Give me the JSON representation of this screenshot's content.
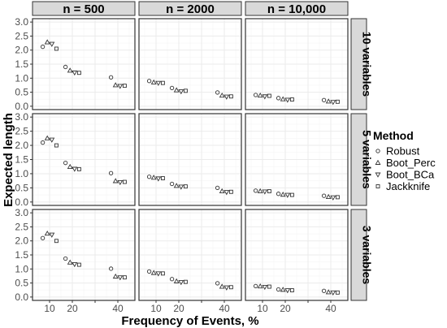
{
  "chart_data": {
    "type": "scatter",
    "xlabel": "Frequency of Events, %",
    "ylabel": "Expected length",
    "column_facets": [
      "n = 500",
      "n = 2000",
      "n = 10,000"
    ],
    "row_facets": [
      "10 variables",
      "5 variables",
      "3 variables"
    ],
    "x_ticks": [
      10,
      20,
      30,
      40
    ],
    "x_tick_labels": [
      "10",
      "20",
      "",
      "40"
    ],
    "xlim": [
      2.5,
      47.5
    ],
    "y_ticks": [
      0.0,
      0.5,
      1.0,
      1.5,
      2.0,
      2.5,
      3.0
    ],
    "y_tick_labels": [
      "0.0",
      "0.5",
      "1.0",
      "1.5",
      "2.0",
      "2.5",
      "3.0"
    ],
    "ylim": [
      -0.12,
      3.12
    ],
    "legend": {
      "title": "Method",
      "position": "right"
    },
    "grid": true,
    "series": [
      {
        "name": "Robust",
        "shape": "circle",
        "x_offset": -3
      },
      {
        "name": "Boot_Perc",
        "shape": "triangle-up",
        "x_offset": -1
      },
      {
        "name": "Boot_BCa",
        "shape": "triangle-down",
        "x_offset": 1
      },
      {
        "name": "Jackknife",
        "shape": "square",
        "x_offset": 3
      }
    ],
    "x": [
      10,
      20,
      40
    ],
    "panels": [
      {
        "row": 0,
        "col": 0,
        "values": [
          [
            2.12,
            1.4,
            1.03
          ],
          [
            2.28,
            1.27,
            0.75
          ],
          [
            2.22,
            1.2,
            0.72
          ],
          [
            2.05,
            1.19,
            0.73
          ]
        ]
      },
      {
        "row": 0,
        "col": 1,
        "values": [
          [
            0.9,
            0.65,
            0.49
          ],
          [
            0.85,
            0.57,
            0.38
          ],
          [
            0.83,
            0.53,
            0.34
          ],
          [
            0.83,
            0.55,
            0.35
          ]
        ]
      },
      {
        "row": 0,
        "col": 2,
        "values": [
          [
            0.4,
            0.29,
            0.22
          ],
          [
            0.38,
            0.25,
            0.17
          ],
          [
            0.35,
            0.23,
            0.15
          ],
          [
            0.37,
            0.24,
            0.16
          ]
        ]
      },
      {
        "row": 1,
        "col": 0,
        "values": [
          [
            2.1,
            1.38,
            1.02
          ],
          [
            2.25,
            1.24,
            0.74
          ],
          [
            2.2,
            1.17,
            0.7
          ],
          [
            2.0,
            1.16,
            0.71
          ]
        ]
      },
      {
        "row": 1,
        "col": 1,
        "values": [
          [
            0.89,
            0.64,
            0.5
          ],
          [
            0.86,
            0.57,
            0.38
          ],
          [
            0.83,
            0.54,
            0.35
          ],
          [
            0.84,
            0.55,
            0.36
          ]
        ]
      },
      {
        "row": 1,
        "col": 2,
        "values": [
          [
            0.4,
            0.29,
            0.22
          ],
          [
            0.38,
            0.26,
            0.18
          ],
          [
            0.37,
            0.25,
            0.16
          ],
          [
            0.38,
            0.25,
            0.17
          ]
        ]
      },
      {
        "row": 2,
        "col": 0,
        "values": [
          [
            2.1,
            1.37,
            1.01
          ],
          [
            2.26,
            1.23,
            0.73
          ],
          [
            2.22,
            1.17,
            0.7
          ],
          [
            2.0,
            1.15,
            0.7
          ]
        ]
      },
      {
        "row": 2,
        "col": 1,
        "values": [
          [
            0.91,
            0.64,
            0.49
          ],
          [
            0.86,
            0.56,
            0.37
          ],
          [
            0.84,
            0.53,
            0.34
          ],
          [
            0.84,
            0.54,
            0.35
          ]
        ]
      },
      {
        "row": 2,
        "col": 2,
        "values": [
          [
            0.39,
            0.27,
            0.22
          ],
          [
            0.38,
            0.26,
            0.17
          ],
          [
            0.36,
            0.24,
            0.16
          ],
          [
            0.37,
            0.24,
            0.16
          ]
        ]
      }
    ],
    "colors": {
      "panel_border": "#333333",
      "strip_fill": "#d9d9d9",
      "grid_major": "#ebebeb",
      "grid_minor": "#f5f5f5",
      "point_stroke": "#333333"
    }
  }
}
